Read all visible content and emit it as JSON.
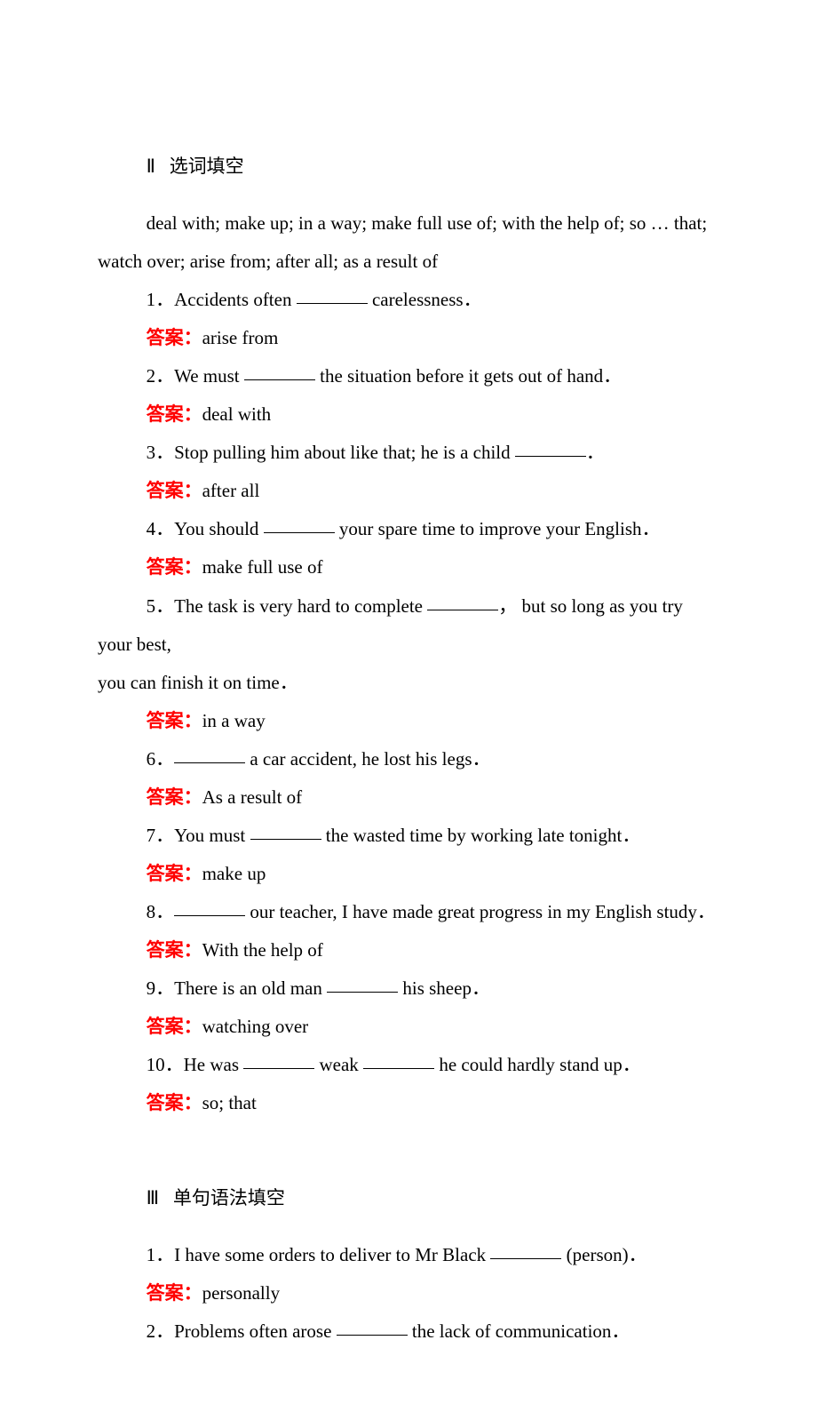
{
  "text_color": "#000000",
  "answer_color": "#ff0000",
  "background_color": "#ffffff",
  "font_size_pt": 16,
  "answer_label": "答案：",
  "section2": {
    "title_numeral": "Ⅱ",
    "title_text": "选词填空",
    "word_bank": "deal with; make up; in a way; make full use of; with the help of; so … that; watch over; arise from; after all; as a result of",
    "questions": [
      {
        "n": "1",
        "pre": "．Accidents often ",
        "post": " carelessness．",
        "answer": "arise from"
      },
      {
        "n": "2",
        "pre": "．We must ",
        "post": " the situation before it gets out of hand．",
        "answer": "deal with"
      },
      {
        "n": "3",
        "pre": "．Stop pulling him about like that; he is a child ",
        "post": "．",
        "answer": "after all"
      },
      {
        "n": "4",
        "pre": "．You should ",
        "post": " your spare time to improve your English．",
        "answer": "make full use of"
      },
      {
        "n": "5",
        "pre": "．The task is very hard to complete ",
        "post": "，  but so long as you try your best,",
        "cont": "you can finish it on time．",
        "answer": "in a way"
      },
      {
        "n": "6",
        "pre": "．",
        "blank_first": true,
        "post": " a car accident, he lost his legs．",
        "answer": "As a result of"
      },
      {
        "n": "7",
        "pre": "．You must ",
        "post": " the wasted time by working late tonight．",
        "answer": "make up"
      },
      {
        "n": "8",
        "pre": "．",
        "blank_first": true,
        "post": " our teacher, I have made great progress in my English study．",
        "answer": "With the help of"
      },
      {
        "n": "9",
        "pre": "．There is an old man ",
        "post": " his sheep．",
        "answer": "watching over"
      },
      {
        "n": "10",
        "pre": "．He was ",
        "mid": " weak ",
        "post": " he could hardly stand up．",
        "two_blanks": true,
        "answer": "so; that"
      }
    ]
  },
  "section3": {
    "title_numeral": "Ⅲ",
    "title_text": "单句语法填空",
    "questions": [
      {
        "n": "1",
        "pre": "．I have some orders to deliver to Mr Black ",
        "post": " (person)．",
        "answer": "personally"
      },
      {
        "n": "2",
        "pre": "．Problems often arose ",
        "post": " the lack of communication．"
      }
    ]
  }
}
